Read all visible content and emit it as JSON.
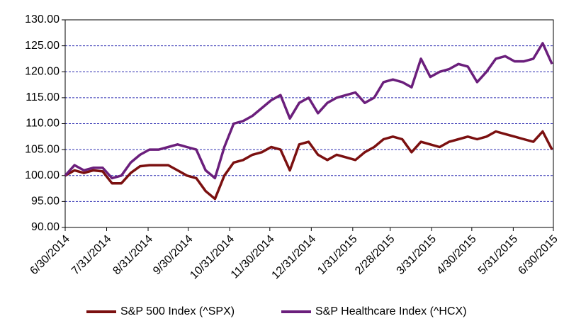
{
  "chart_data": {
    "type": "line",
    "x": [
      "6/30/2014",
      "7/7/2014",
      "7/14/2014",
      "7/21/2014",
      "7/28/2014",
      "8/4/2014",
      "8/11/2014",
      "8/18/2014",
      "8/25/2014",
      "9/1/2014",
      "9/8/2014",
      "9/15/2014",
      "9/22/2014",
      "9/29/2014",
      "10/6/2014",
      "10/13/2014",
      "10/20/2014",
      "10/27/2014",
      "11/3/2014",
      "11/10/2014",
      "11/17/2014",
      "11/24/2014",
      "12/1/2014",
      "12/8/2014",
      "12/15/2014",
      "12/22/2014",
      "12/29/2014",
      "1/5/2015",
      "1/12/2015",
      "1/19/2015",
      "1/26/2015",
      "2/2/2015",
      "2/9/2015",
      "2/16/2015",
      "2/23/2015",
      "3/2/2015",
      "3/9/2015",
      "3/16/2015",
      "3/23/2015",
      "3/30/2015",
      "4/6/2015",
      "4/13/2015",
      "4/20/2015",
      "4/27/2015",
      "5/4/2015",
      "5/11/2015",
      "5/18/2015",
      "5/25/2015",
      "6/1/2015",
      "6/8/2015",
      "6/15/2015",
      "6/22/2015",
      "6/29/2015"
    ],
    "series": [
      {
        "name": "S&P 500 Index (^SPX)",
        "color": "#7b1010",
        "values": [
          100,
          101,
          100.5,
          101,
          100.8,
          98.5,
          98.5,
          100.5,
          101.8,
          102,
          102,
          102,
          101,
          100,
          99.5,
          97,
          95.5,
          100,
          102.5,
          103,
          104,
          104.5,
          105.5,
          105,
          101,
          106,
          106.5,
          104,
          103,
          104,
          103.5,
          103,
          104.5,
          105.5,
          107,
          107.5,
          107,
          104.5,
          106.5,
          106,
          105.5,
          106.5,
          107,
          107.5,
          107,
          107.5,
          108.5,
          108,
          107.5,
          107,
          106.5,
          108.5,
          105
        ]
      },
      {
        "name": "S&P Healthcare Index (^HCX)",
        "color": "#6b1f7c",
        "values": [
          100,
          102,
          101,
          101.5,
          101.5,
          99.5,
          100,
          102.5,
          104,
          105,
          105,
          105.5,
          106,
          105.5,
          105,
          101,
          99.5,
          105.5,
          110,
          110.5,
          111.5,
          113,
          114.5,
          115.5,
          111,
          114,
          115,
          112,
          114,
          115,
          115.5,
          116,
          114,
          115,
          118,
          118.5,
          118,
          117,
          122.5,
          119,
          120,
          120.5,
          121.5,
          121,
          118,
          120,
          122.5,
          123,
          122,
          122,
          122.5,
          125.5,
          121.5
        ]
      }
    ],
    "xlim": [
      "6/30/2014",
      "6/30/2015"
    ],
    "xticks": [
      "6/30/2014",
      "7/31/2014",
      "8/31/2014",
      "9/30/2014",
      "10/31/2014",
      "11/30/2014",
      "12/31/2014",
      "1/31/2015",
      "2/28/2015",
      "3/31/2015",
      "4/30/2015",
      "5/31/2015",
      "6/30/2015"
    ],
    "ylim": [
      90,
      130
    ],
    "yticks": [
      {
        "value": 90,
        "label": "90.00"
      },
      {
        "value": 95,
        "label": "95.00"
      },
      {
        "value": 100,
        "label": "100.00"
      },
      {
        "value": 105,
        "label": "105.00"
      },
      {
        "value": 110,
        "label": "110.00"
      },
      {
        "value": 115,
        "label": "115.00"
      },
      {
        "value": 120,
        "label": "120.00"
      },
      {
        "value": 125,
        "label": "125.00"
      },
      {
        "value": 130,
        "label": "130.00"
      }
    ],
    "grid": true,
    "legend": "bottom"
  }
}
